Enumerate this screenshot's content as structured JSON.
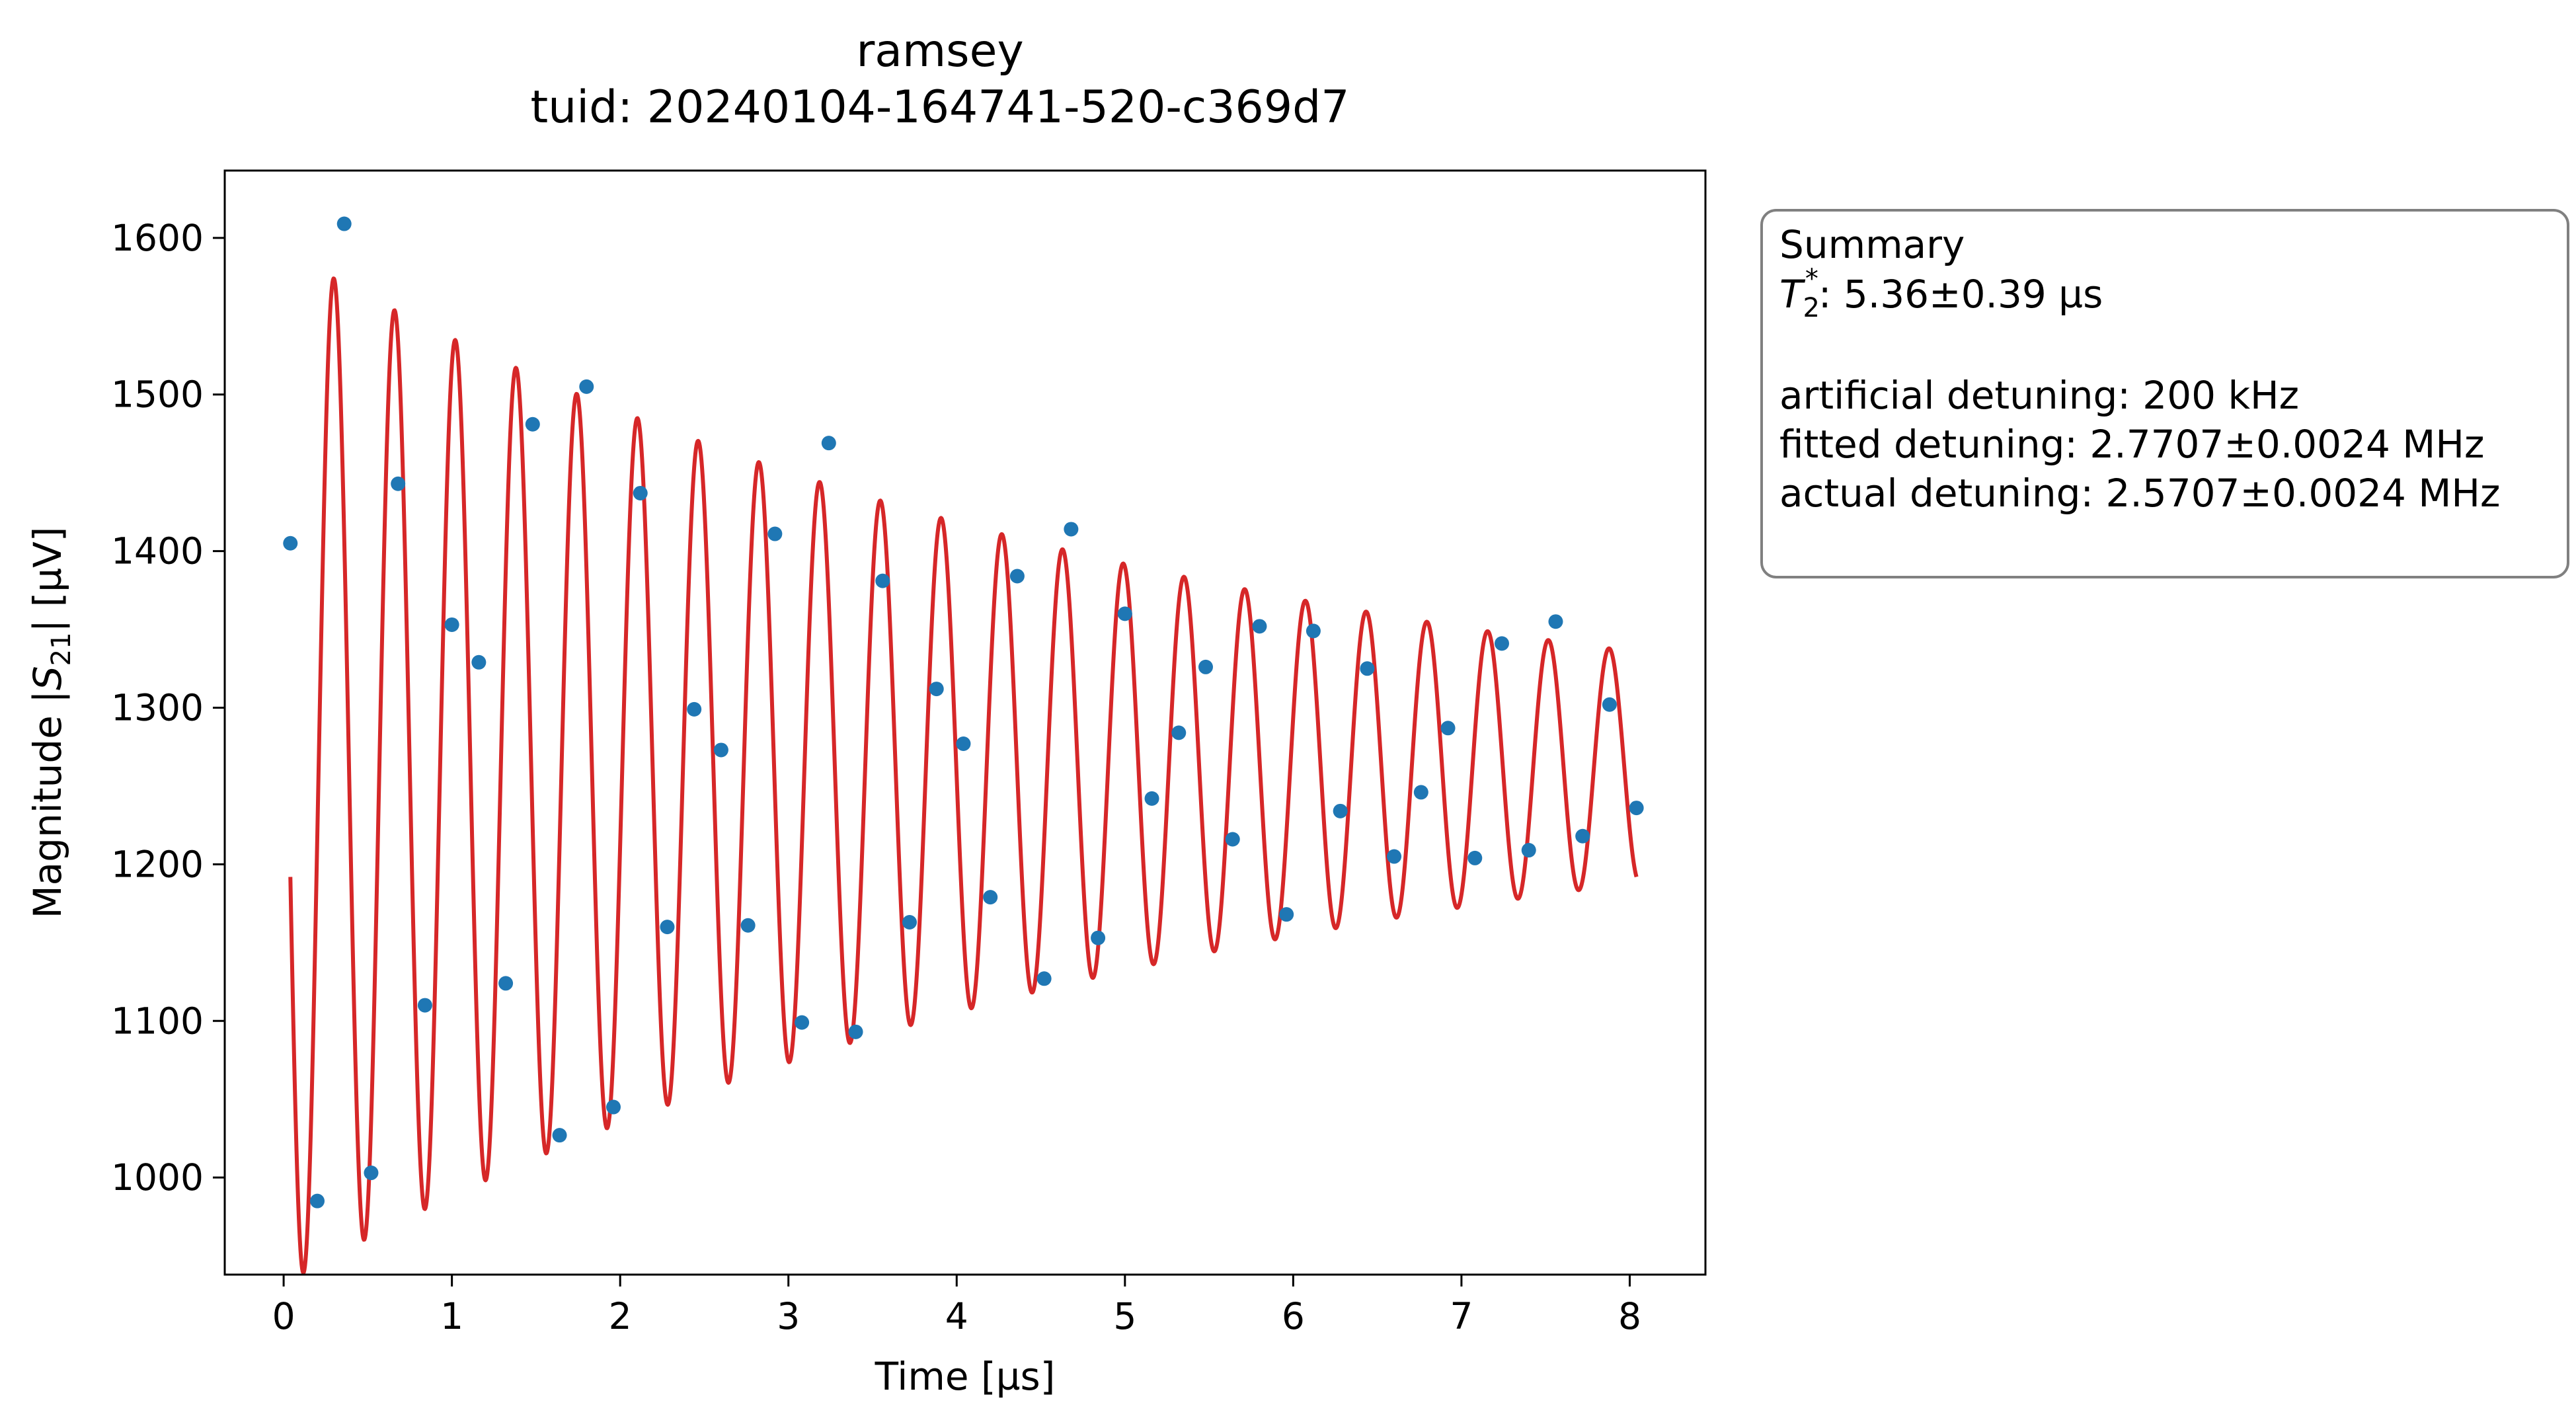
{
  "chart_data": {
    "type": "scatter",
    "title": "ramsey",
    "subtitle": "tuid: 20240104-164741-520-c369d7",
    "xlabel": "Time [µs]",
    "ylabel": {
      "prefix": "Magnitude |",
      "sym": "S",
      "sub": "21",
      "suffix": "| [µV]"
    },
    "xlim": [
      -0.35,
      8.45
    ],
    "ylim": [
      938,
      1643
    ],
    "xticks": [
      0,
      1,
      2,
      3,
      4,
      5,
      6,
      7,
      8
    ],
    "yticks": [
      1000,
      1100,
      1200,
      1300,
      1400,
      1500,
      1600
    ],
    "series": [
      {
        "kind": "points",
        "color": "#1f77b4",
        "points": [
          [
            0.04,
            1405
          ],
          [
            0.2,
            985
          ],
          [
            0.36,
            1609
          ],
          [
            0.52,
            1003
          ],
          [
            0.68,
            1443
          ],
          [
            0.84,
            1110
          ],
          [
            1.0,
            1353
          ],
          [
            1.16,
            1329
          ],
          [
            1.32,
            1124
          ],
          [
            1.48,
            1481
          ],
          [
            1.64,
            1027
          ],
          [
            1.8,
            1505
          ],
          [
            1.96,
            1045
          ],
          [
            2.12,
            1437
          ],
          [
            2.28,
            1160
          ],
          [
            2.44,
            1299
          ],
          [
            2.6,
            1273
          ],
          [
            2.76,
            1161
          ],
          [
            2.92,
            1411
          ],
          [
            3.08,
            1099
          ],
          [
            3.24,
            1469
          ],
          [
            3.4,
            1093
          ],
          [
            3.56,
            1381
          ],
          [
            3.72,
            1163
          ],
          [
            3.88,
            1312
          ],
          [
            4.04,
            1277
          ],
          [
            4.2,
            1179
          ],
          [
            4.36,
            1384
          ],
          [
            4.52,
            1127
          ],
          [
            4.68,
            1414
          ],
          [
            4.84,
            1153
          ],
          [
            5.0,
            1360
          ],
          [
            5.16,
            1242
          ],
          [
            5.32,
            1284
          ],
          [
            5.48,
            1326
          ],
          [
            5.64,
            1216
          ],
          [
            5.8,
            1352
          ],
          [
            5.96,
            1168
          ],
          [
            6.12,
            1349
          ],
          [
            6.28,
            1234
          ],
          [
            6.44,
            1325
          ],
          [
            6.6,
            1205
          ],
          [
            6.76,
            1246
          ],
          [
            6.92,
            1287
          ],
          [
            7.08,
            1204
          ],
          [
            7.24,
            1341
          ],
          [
            7.4,
            1209
          ],
          [
            7.56,
            1355
          ],
          [
            7.72,
            1218
          ],
          [
            7.88,
            1302
          ],
          [
            8.04,
            1236
          ]
        ]
      },
      {
        "kind": "fit",
        "color": "#d62728",
        "x_range": [
          0.04,
          8.04
        ],
        "model": {
          "offset": 1262,
          "amplitude": 330,
          "tau_us": 5.36,
          "freq_MHz": 2.7707,
          "phase": 1.09
        }
      }
    ],
    "legend": "none",
    "grid": false
  },
  "summary": {
    "heading": "Summary",
    "t2_sym": "T",
    "t2_sub": "2",
    "t2_sup": "*",
    "t2_value": ": 5.36±0.39 µs",
    "artificial": "artificial detuning: 200 kHz",
    "fitted": "fitted detuning: 2.7707±0.0024 MHz",
    "actual": "actual detuning: 2.5707±0.0024 MHz"
  }
}
